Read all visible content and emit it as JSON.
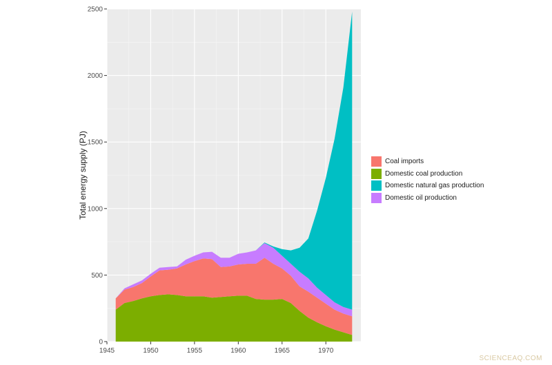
{
  "chart_data": {
    "type": "area",
    "stacked": true,
    "title": "",
    "xlabel": "",
    "ylabel": "Total energy supply (PJ)",
    "xlim": [
      1945,
      1974
    ],
    "ylim": [
      0,
      2500
    ],
    "x_ticks": [
      1945,
      1950,
      1955,
      1960,
      1965,
      1970
    ],
    "y_ticks": [
      0,
      500,
      1000,
      1500,
      2000,
      2500
    ],
    "grid": true,
    "legend_position": "right",
    "stack_order_bottom_to_top": [
      "Domestic coal production",
      "Coal imports",
      "Domestic oil production",
      "Domestic natural gas production"
    ],
    "x": [
      1946,
      1947,
      1948,
      1949,
      1950,
      1951,
      1952,
      1953,
      1954,
      1955,
      1956,
      1957,
      1958,
      1959,
      1960,
      1961,
      1962,
      1963,
      1964,
      1965,
      1966,
      1967,
      1968,
      1969,
      1970,
      1971,
      1972,
      1973
    ],
    "series": [
      {
        "name": "Coal imports",
        "color": "#F8766D",
        "values": [
          85,
          100,
          105,
          115,
          150,
          185,
          185,
          200,
          240,
          265,
          285,
          290,
          225,
          225,
          235,
          240,
          265,
          315,
          270,
          230,
          205,
          185,
          195,
          185,
          170,
          150,
          140,
          140
        ]
      },
      {
        "name": "Domestic coal production",
        "color": "#7CAE00",
        "values": [
          240,
          290,
          305,
          325,
          340,
          350,
          355,
          350,
          340,
          340,
          340,
          330,
          335,
          340,
          345,
          345,
          320,
          315,
          315,
          320,
          290,
          230,
          180,
          145,
          115,
          90,
          70,
          50
        ]
      },
      {
        "name": "Domestic natural gas production",
        "color": "#00BFC4",
        "values": [
          0,
          0,
          0,
          0,
          0,
          0,
          0,
          0,
          0,
          0,
          0,
          0,
          0,
          0,
          0,
          0,
          0,
          5,
          10,
          50,
          100,
          180,
          300,
          580,
          880,
          1230,
          1650,
          2240
        ]
      },
      {
        "name": "Domestic oil production",
        "color": "#C77CFF",
        "values": [
          0,
          10,
          20,
          20,
          20,
          20,
          20,
          15,
          35,
          40,
          45,
          55,
          70,
          65,
          80,
          85,
          100,
          110,
          120,
          95,
          90,
          110,
          100,
          75,
          65,
          55,
          50,
          50
        ]
      }
    ]
  },
  "legend": {
    "items": [
      {
        "label": "Coal imports",
        "color": "#F8766D"
      },
      {
        "label": "Domestic coal production",
        "color": "#7CAE00"
      },
      {
        "label": "Domestic natural gas production",
        "color": "#00BFC4"
      },
      {
        "label": "Domestic oil production",
        "color": "#C77CFF"
      }
    ]
  },
  "watermark": "SCIENCEAQ.COM"
}
